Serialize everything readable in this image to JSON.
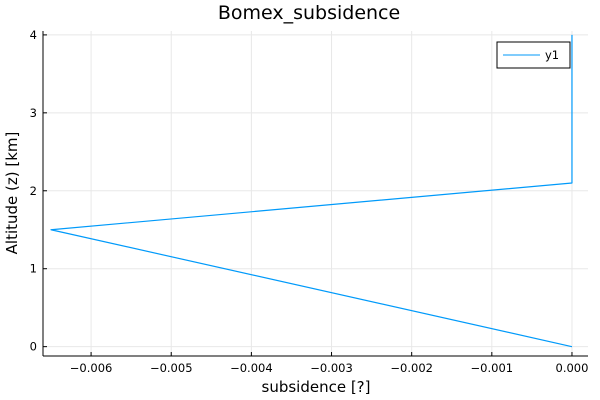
{
  "chart_data": {
    "type": "line",
    "title": "Bomex_subsidence",
    "xlabel": "subsidence [?]",
    "ylabel": "Altitude (z) [km]",
    "xlim": [
      -0.0066,
      0.0002
    ],
    "ylim": [
      -0.12,
      4.05
    ],
    "xticks": [
      -0.006,
      -0.005,
      -0.004,
      -0.003,
      -0.002,
      -0.001,
      0.0
    ],
    "xtick_labels": [
      "−0.006",
      "−0.005",
      "−0.004",
      "−0.003",
      "−0.002",
      "−0.001",
      "0.000"
    ],
    "yticks": [
      0,
      1,
      2,
      3,
      4
    ],
    "ytick_labels": [
      "0",
      "1",
      "2",
      "3",
      "4"
    ],
    "grid": true,
    "legend": {
      "position": "top-right",
      "entries": [
        "y1"
      ]
    },
    "series": [
      {
        "name": "y1",
        "color": "#009AFA",
        "x": [
          0.0,
          -0.0065,
          0.0,
          0.0
        ],
        "y": [
          0.0,
          1.5,
          2.1,
          4.0
        ]
      }
    ]
  }
}
